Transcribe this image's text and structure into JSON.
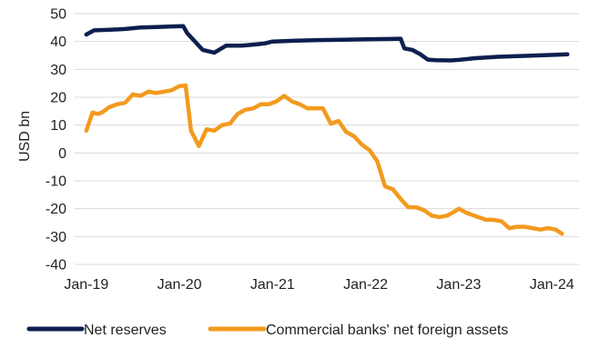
{
  "chart_data": {
    "type": "line",
    "title": "",
    "xlabel": "",
    "ylabel": "USD bn",
    "ylim": [
      -40,
      50
    ],
    "yticks": [
      50,
      40,
      30,
      20,
      10,
      0,
      -10,
      -20,
      -30,
      -40
    ],
    "ytick_labels": [
      "50",
      "40",
      "30",
      "20",
      "10",
      "0",
      "-10",
      "-20",
      "-30",
      "-40"
    ],
    "xtick_labels": [
      "Jan-19",
      "Jan-20",
      "Jan-21",
      "Jan-22",
      "Jan-23",
      "Jan-24"
    ],
    "x_unit": "months since Jan-19",
    "grid": true,
    "legend_position": "bottom",
    "series": [
      {
        "name": "Net reserves",
        "color": "#0d1f4f",
        "points": [
          [
            0,
            42.5
          ],
          [
            1,
            44
          ],
          [
            3,
            44.2
          ],
          [
            5,
            44.5
          ],
          [
            7,
            45
          ],
          [
            9,
            45.2
          ],
          [
            11,
            45.4
          ],
          [
            12.5,
            45.5
          ],
          [
            13,
            43
          ],
          [
            14,
            40
          ],
          [
            15,
            37
          ],
          [
            16.5,
            36
          ],
          [
            18,
            38.5
          ],
          [
            20,
            38.5
          ],
          [
            22,
            39
          ],
          [
            23,
            39.3
          ],
          [
            24,
            40
          ],
          [
            27,
            40.3
          ],
          [
            30,
            40.5
          ],
          [
            33,
            40.6
          ],
          [
            36,
            40.8
          ],
          [
            39,
            40.9
          ],
          [
            40.5,
            41
          ],
          [
            41,
            37.5
          ],
          [
            42,
            37
          ],
          [
            43,
            35.5
          ],
          [
            44,
            33.5
          ],
          [
            45,
            33.3
          ],
          [
            47,
            33.2
          ],
          [
            48,
            33.4
          ],
          [
            50,
            34
          ],
          [
            53,
            34.5
          ],
          [
            56,
            34.8
          ],
          [
            59,
            35.1
          ],
          [
            61,
            35.3
          ],
          [
            62,
            35.4
          ]
        ]
      },
      {
        "name": "Commercial banks' net foreign assets",
        "color": "#f39a1e",
        "points": [
          [
            0,
            8
          ],
          [
            0.8,
            14.5
          ],
          [
            1.5,
            14
          ],
          [
            2,
            14.5
          ],
          [
            3,
            16.5
          ],
          [
            4,
            17.5
          ],
          [
            5,
            18
          ],
          [
            6,
            21
          ],
          [
            7,
            20.5
          ],
          [
            8,
            22
          ],
          [
            9,
            21.5
          ],
          [
            10,
            22
          ],
          [
            11,
            22.5
          ],
          [
            12,
            24
          ],
          [
            12.8,
            24.2
          ],
          [
            13.5,
            8
          ],
          [
            14.5,
            2.5
          ],
          [
            15.5,
            8.5
          ],
          [
            16.5,
            8
          ],
          [
            17.5,
            10
          ],
          [
            18.5,
            10.5
          ],
          [
            19.5,
            14
          ],
          [
            20.5,
            15.5
          ],
          [
            21.5,
            16
          ],
          [
            22.5,
            17.5
          ],
          [
            23.5,
            17.5
          ],
          [
            24.5,
            18.5
          ],
          [
            25.5,
            20.5
          ],
          [
            26.5,
            18.5
          ],
          [
            27.5,
            17.5
          ],
          [
            28.5,
            16
          ],
          [
            29.5,
            16
          ],
          [
            30.5,
            16
          ],
          [
            31.5,
            10.5
          ],
          [
            32.5,
            11.5
          ],
          [
            33.5,
            7.5
          ],
          [
            34.5,
            6
          ],
          [
            35.5,
            3
          ],
          [
            36.5,
            1
          ],
          [
            37.5,
            -3
          ],
          [
            38.5,
            -12
          ],
          [
            39.5,
            -13
          ],
          [
            40.5,
            -16.5
          ],
          [
            41.5,
            -19.5
          ],
          [
            42.5,
            -19.5
          ],
          [
            43.5,
            -20.5
          ],
          [
            44.5,
            -22.5
          ],
          [
            45.5,
            -23
          ],
          [
            46.5,
            -22.5
          ],
          [
            47.5,
            -21
          ],
          [
            48,
            -20
          ],
          [
            49,
            -21.5
          ],
          [
            50.5,
            -23
          ],
          [
            51.5,
            -24
          ],
          [
            52.5,
            -24
          ],
          [
            53.5,
            -24.5
          ],
          [
            54.5,
            -27
          ],
          [
            55.5,
            -26.5
          ],
          [
            56.5,
            -26.5
          ],
          [
            57.5,
            -27
          ],
          [
            58.5,
            -27.5
          ],
          [
            59.5,
            -27
          ],
          [
            60.5,
            -27.5
          ],
          [
            61.3,
            -29
          ]
        ]
      }
    ]
  }
}
